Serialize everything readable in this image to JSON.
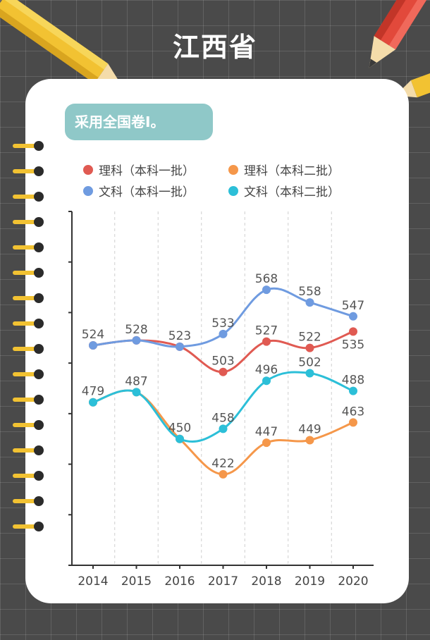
{
  "title": "江西省",
  "banner": "采用全国卷Ⅰ。",
  "colors": {
    "li1": "#e05a52",
    "li2": "#f5974a",
    "wen1": "#6f9be0",
    "wen2": "#2cbfd8"
  },
  "chart_data": {
    "type": "line",
    "categories": [
      "2014",
      "2015",
      "2016",
      "2017",
      "2018",
      "2019",
      "2020"
    ],
    "ylim": [
      350,
      630
    ],
    "grid": "vertical dashed",
    "legend": "top",
    "series": [
      {
        "name": "理科（本科一批）",
        "key": "li1",
        "values": [
          524,
          528,
          523,
          503,
          527,
          522,
          535
        ]
      },
      {
        "name": "理科（本科二批）",
        "key": "li2",
        "values": [
          479,
          487,
          450,
          422,
          447,
          449,
          463
        ]
      },
      {
        "name": "文科（本科一批）",
        "key": "wen1",
        "values": [
          524,
          528,
          523,
          533,
          568,
          558,
          547
        ]
      },
      {
        "name": "文科（本科二批）",
        "key": "wen2",
        "values": [
          479,
          487,
          450,
          458,
          496,
          502,
          488
        ]
      }
    ]
  }
}
